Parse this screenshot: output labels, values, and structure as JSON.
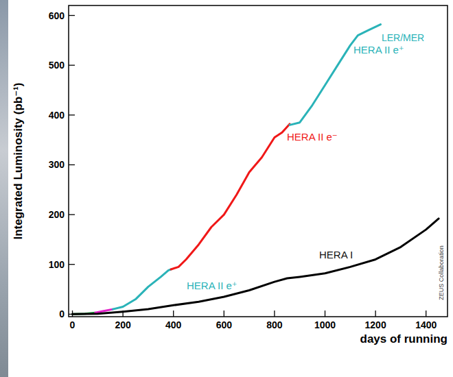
{
  "chart_data": {
    "type": "line",
    "x_label": "days of running",
    "y_label": "Integrated Luminosity (pb⁻¹)",
    "xlim": [
      -15,
      1485
    ],
    "ylim": [
      -5,
      620
    ],
    "xticks": [
      0,
      200,
      400,
      600,
      800,
      1000,
      1200,
      1400
    ],
    "yticks": [
      0,
      100,
      200,
      300,
      400,
      500,
      600
    ],
    "grid": false,
    "annotations": [
      "LER/MER"
    ],
    "source": "ZEUS Collaboration",
    "series": [
      {
        "color": "#1a9a3a",
        "x": [
          0,
          50,
          90
        ],
        "values": [
          0,
          1,
          3
        ]
      },
      {
        "color": "#e020c8",
        "x": [
          90,
          120,
          160
        ],
        "values": [
          3,
          6,
          10
        ]
      },
      {
        "name": "HERA II e⁺",
        "color": "#2ab3b8",
        "x": [
          160,
          200,
          250,
          300,
          350,
          380,
          390
        ],
        "values": [
          10,
          15,
          30,
          55,
          75,
          88,
          90
        ]
      },
      {
        "name": "HERA II e⁻",
        "color": "#f01818",
        "x": [
          390,
          420,
          450,
          500,
          550,
          600,
          650,
          700,
          750,
          800,
          830,
          860
        ],
        "values": [
          90,
          95,
          110,
          140,
          175,
          200,
          240,
          285,
          315,
          355,
          365,
          382
        ]
      },
      {
        "name": "HERA II e⁺",
        "color": "#2ab3b8",
        "x": [
          860,
          900,
          950,
          1000,
          1050,
          1100,
          1130,
          1170,
          1220
        ],
        "values": [
          380,
          385,
          420,
          460,
          500,
          540,
          560,
          570,
          582
        ]
      },
      {
        "name": "HERA I",
        "color": "#000000",
        "x": [
          0,
          100,
          200,
          300,
          400,
          500,
          600,
          700,
          800,
          850,
          900,
          1000,
          1100,
          1200,
          1300,
          1400,
          1450
        ],
        "values": [
          0,
          1,
          5,
          10,
          18,
          25,
          35,
          48,
          65,
          72,
          75,
          82,
          95,
          110,
          135,
          170,
          192
        ]
      }
    ]
  }
}
